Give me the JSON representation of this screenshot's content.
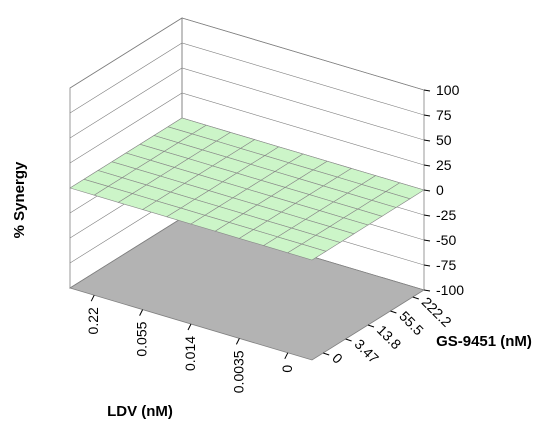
{
  "chart_data": {
    "type": "surface",
    "zlabel": "% Synergy",
    "xlabel": "LDV (nM)",
    "ylabel": "GS-9451 (nM)",
    "zlim": [
      -100,
      100
    ],
    "z_ticks": [
      "100",
      "75",
      "50",
      "25",
      "0",
      "-25",
      "-50",
      "-75",
      "-100"
    ],
    "x_ticks": [
      "0.22",
      "0.055",
      "0.014",
      "0.0035",
      "0"
    ],
    "y_ticks": [
      "222.2",
      "55.5",
      "13.8",
      "3.47",
      "0"
    ],
    "colors": {
      "surface_zero_band": "#ccf5c8",
      "surface_positive_band": "#c8ecf5",
      "floor": "#b3b3b3",
      "grid": "#808080"
    },
    "grid_size": [
      11,
      9
    ],
    "surface_values": [
      [
        0,
        0,
        0,
        0,
        0,
        0,
        0,
        0,
        0
      ],
      [
        0,
        0,
        0,
        0,
        0,
        0,
        0,
        0,
        0
      ],
      [
        0,
        0,
        0,
        0,
        0,
        0,
        0,
        0,
        0
      ],
      [
        0,
        0,
        0,
        0,
        0,
        0,
        0,
        0,
        0
      ],
      [
        0,
        0,
        0,
        0,
        0,
        0,
        0,
        0,
        0
      ],
      [
        0,
        0,
        0,
        0,
        0,
        0,
        0,
        0,
        0
      ],
      [
        0,
        0,
        0,
        0,
        0,
        0,
        0,
        0,
        0
      ],
      [
        0,
        0,
        0,
        0,
        0,
        0,
        0,
        0,
        0
      ],
      [
        0,
        0,
        0,
        0,
        0,
        0,
        0,
        0,
        0
      ],
      [
        0,
        0,
        0,
        0,
        0,
        0,
        0,
        0,
        0
      ],
      [
        0,
        0,
        0,
        0,
        0,
        0,
        0,
        0,
        0
      ]
    ]
  }
}
